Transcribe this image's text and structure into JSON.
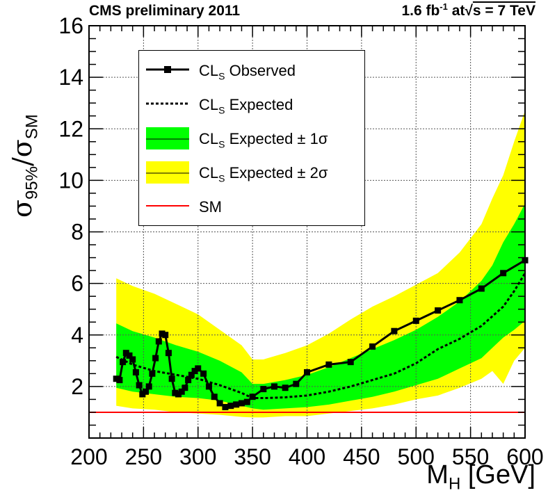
{
  "header": {
    "left_title": "CMS preliminary 2011",
    "lumi_value": "1.6 fb",
    "lumi_exp": "-1",
    "lumi_at": " at",
    "sqrt_symbol": "√",
    "energy": "s = 7 TeV"
  },
  "axes": {
    "ylabel_main": "σ",
    "ylabel_sub1": "95%",
    "ylabel_slash": "/σ",
    "ylabel_sub2": "SM",
    "xlabel_main": "M",
    "xlabel_sub": "H",
    "xlabel_unit": " [GeV]"
  },
  "legend": {
    "observed": {
      "main": "CL",
      "sub": "S",
      "rest": " Observed"
    },
    "expected": {
      "main": "CL",
      "sub": "S",
      "rest": " Expected"
    },
    "one_sigma": {
      "main": "CL",
      "sub": "S",
      "rest": " Expected ± 1σ"
    },
    "two_sigma": {
      "main": "CL",
      "sub": "S",
      "rest": " Expected ± 2σ"
    },
    "sm": {
      "label": "SM"
    }
  },
  "colors": {
    "observed": "#000000",
    "expected": "#000000",
    "one_sigma": "#00ff00",
    "two_sigma": "#ffff00",
    "sm": "#ff0000",
    "grid": "#555555"
  },
  "chart_data": {
    "type": "line",
    "title": "CMS preliminary 2011",
    "xlabel": "M_H [GeV]",
    "ylabel": "σ95%/σSM",
    "xlim": [
      200,
      600
    ],
    "ylim": [
      0,
      16
    ],
    "xticks": [
      200,
      250,
      300,
      350,
      400,
      450,
      500,
      550,
      600
    ],
    "yticks": [
      2,
      4,
      6,
      8,
      10,
      12,
      14,
      16
    ],
    "grid": true,
    "legend_position": "top-left",
    "sm_value": 1,
    "series": [
      {
        "name": "CLs Observed",
        "x": [
          225,
          228,
          231,
          234,
          237,
          240,
          243,
          246,
          249,
          252,
          255,
          258,
          261,
          264,
          267,
          270,
          273,
          276,
          279,
          282,
          285,
          288,
          291,
          294,
          297,
          300,
          305,
          310,
          315,
          320,
          325,
          330,
          335,
          340,
          345,
          350,
          360,
          370,
          380,
          390,
          400,
          420,
          440,
          460,
          480,
          500,
          520,
          540,
          560,
          580,
          600
        ],
        "values": [
          2.3,
          2.25,
          2.95,
          3.3,
          3.2,
          3.05,
          2.55,
          2.05,
          1.7,
          1.8,
          2.0,
          2.5,
          3.1,
          3.75,
          4.05,
          4.0,
          3.3,
          2.3,
          1.75,
          1.7,
          1.8,
          1.95,
          2.25,
          2.45,
          2.6,
          2.7,
          2.5,
          2.0,
          1.6,
          1.35,
          1.2,
          1.25,
          1.3,
          1.35,
          1.4,
          1.6,
          1.9,
          2.0,
          1.95,
          2.1,
          2.55,
          2.85,
          2.95,
          3.55,
          4.15,
          4.55,
          4.95,
          5.35,
          5.8,
          6.4,
          6.9
        ]
      },
      {
        "name": "CLs Expected",
        "x": [
          225,
          240,
          260,
          280,
          300,
          320,
          340,
          350,
          360,
          380,
          400,
          420,
          440,
          460,
          480,
          500,
          520,
          540,
          560,
          580,
          590,
          600
        ],
        "values": [
          3.15,
          2.85,
          2.6,
          2.45,
          2.3,
          2.05,
          1.75,
          1.55,
          1.55,
          1.58,
          1.65,
          1.8,
          2.0,
          2.25,
          2.5,
          2.9,
          3.45,
          3.85,
          4.35,
          5.1,
          5.7,
          6.4
        ]
      }
    ],
    "bands": [
      {
        "name": "CLs Expected ± 2σ",
        "x": [
          225,
          240,
          260,
          280,
          300,
          320,
          340,
          350,
          360,
          380,
          400,
          420,
          440,
          460,
          480,
          500,
          520,
          540,
          560,
          570,
          580,
          590,
          600
        ],
        "lower": [
          1.25,
          1.15,
          1.1,
          1.0,
          0.95,
          0.9,
          0.82,
          0.8,
          0.8,
          0.85,
          0.85,
          0.95,
          1.05,
          1.15,
          1.3,
          1.5,
          1.65,
          1.95,
          2.3,
          2.6,
          2.1,
          3.0,
          3.5
        ],
        "upper": [
          6.2,
          5.9,
          5.6,
          5.2,
          4.8,
          4.2,
          3.6,
          3.05,
          3.05,
          3.3,
          3.6,
          4.05,
          4.6,
          5.1,
          5.5,
          5.95,
          6.4,
          7.2,
          8.3,
          9.3,
          10.2,
          11.5,
          12.7
        ]
      },
      {
        "name": "CLs Expected ± 1σ",
        "x": [
          225,
          240,
          260,
          280,
          300,
          320,
          340,
          350,
          360,
          380,
          400,
          420,
          440,
          460,
          480,
          500,
          520,
          540,
          560,
          570,
          580,
          590,
          600
        ],
        "lower": [
          1.95,
          1.8,
          1.7,
          1.6,
          1.55,
          1.45,
          1.25,
          1.15,
          1.1,
          1.15,
          1.2,
          1.3,
          1.45,
          1.6,
          1.8,
          2.05,
          2.3,
          2.7,
          3.1,
          3.5,
          3.9,
          4.2,
          4.55
        ],
        "upper": [
          4.45,
          4.15,
          3.9,
          3.6,
          3.35,
          3.0,
          2.55,
          2.1,
          2.1,
          2.25,
          2.45,
          2.75,
          3.1,
          3.45,
          3.8,
          4.2,
          4.7,
          5.3,
          6.1,
          6.7,
          7.6,
          8.3,
          9.1
        ]
      }
    ]
  }
}
